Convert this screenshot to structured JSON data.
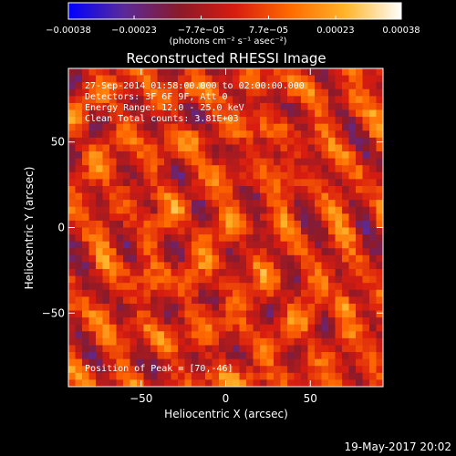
{
  "chart_data": {
    "type": "heatmap",
    "title": "Reconstructed RHESSI Image",
    "xlabel": "Heliocentric X (arcsec)",
    "ylabel": "Heliocentric Y (arcsec)",
    "xlim": [
      -93,
      93
    ],
    "ylim": [
      -93,
      93
    ],
    "x_ticks": [
      -50,
      0,
      50
    ],
    "y_ticks": [
      -50,
      0,
      50
    ],
    "x_tick_labels": [
      "−50",
      "0",
      "50"
    ],
    "y_tick_labels": [
      "−50",
      "0",
      "50"
    ],
    "colorbar": {
      "min": -0.00038,
      "max": 0.00038,
      "ticks": [
        -0.00038,
        -0.00023,
        -7.7e-05,
        7.7e-05,
        0.00023,
        0.00038
      ],
      "tick_labels": [
        "−0.00038",
        "−0.00023",
        "−7.7e−05",
        "7.7e−05",
        "0.00023",
        "0.00038"
      ],
      "unit_label": "(photons cm⁻² s⁻¹ asec⁻²)",
      "stops": [
        "#0000ff",
        "#5a2a9a",
        "#8a1a2a",
        "#d81c10",
        "#ff6a00",
        "#ffb52a",
        "#ffffff"
      ]
    },
    "annotations": [
      "27-Sep-2014 01:58:00.000 to 02:00:00.000",
      "Detectors: 3F 6F 9F, Att 0",
      "Energy Range: 12.0 - 25.0 keV",
      "Clean     Total counts: 3.81E+03"
    ],
    "peak_label": "Position of Peak = [70,-46]",
    "peak": [
      70,
      -46
    ],
    "grid": false
  },
  "footer": {
    "timestamp": "19-May-2017 20:02"
  }
}
